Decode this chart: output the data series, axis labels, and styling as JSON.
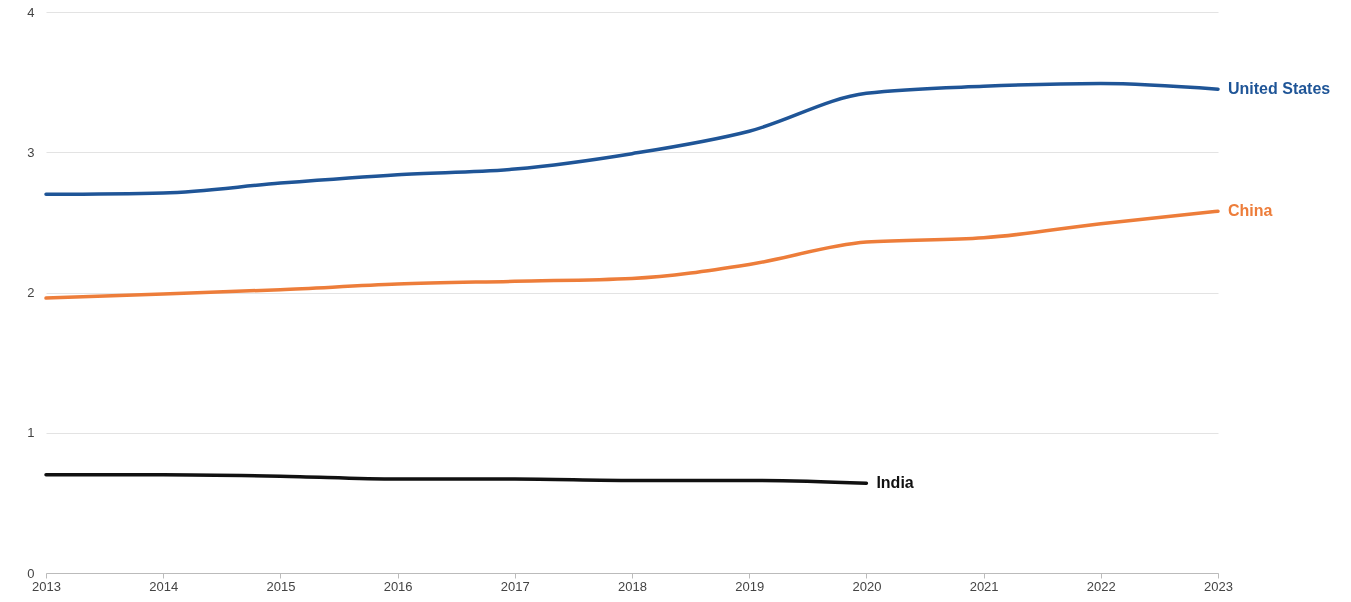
{
  "chart_data": {
    "type": "line",
    "x": [
      2013,
      2014,
      2015,
      2016,
      2017,
      2018,
      2019,
      2020,
      2021,
      2022,
      2023
    ],
    "series": [
      {
        "name": "United States",
        "color": "#1f5597",
        "values": [
          2.7,
          2.71,
          2.78,
          2.84,
          2.88,
          2.99,
          3.15,
          3.42,
          3.47,
          3.49,
          3.45
        ]
      },
      {
        "name": "China",
        "color": "#ed7d3a",
        "values": [
          1.96,
          1.99,
          2.02,
          2.06,
          2.08,
          2.1,
          2.2,
          2.36,
          2.39,
          2.49,
          2.58
        ]
      },
      {
        "name": "India",
        "color": "#111111",
        "values": [
          0.7,
          0.7,
          0.69,
          0.67,
          0.67,
          0.66,
          0.66,
          0.64,
          null,
          null,
          null
        ]
      }
    ],
    "xlim": [
      2013,
      2023
    ],
    "ylim": [
      0,
      4
    ],
    "xticks": [
      2013,
      2014,
      2015,
      2016,
      2017,
      2018,
      2019,
      2020,
      2021,
      2022,
      2023
    ],
    "yticks": [
      0,
      1,
      2,
      3,
      4
    ],
    "grid": "y"
  }
}
